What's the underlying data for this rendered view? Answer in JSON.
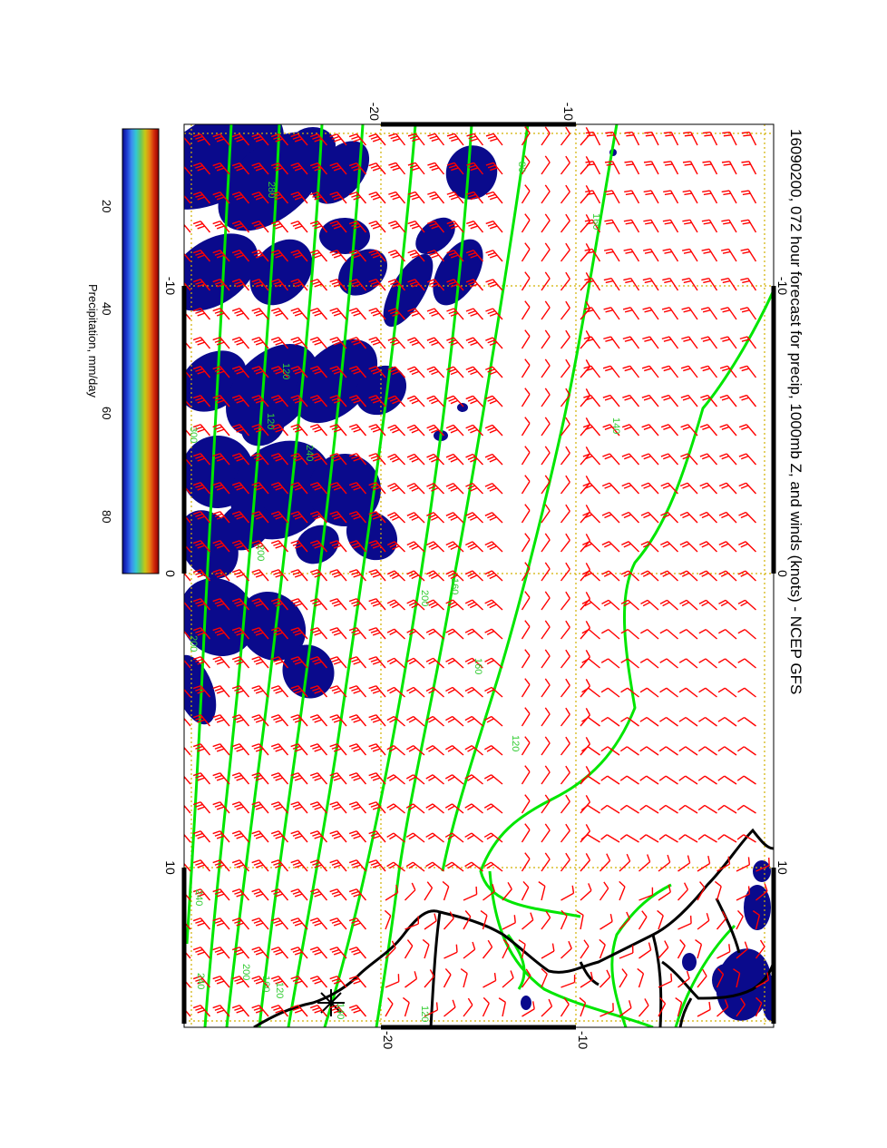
{
  "title": "16090200, 072 hour forecast for precip, 1000mb Z, and winds (knots) - NCEP GFS",
  "colorbar": {
    "label": "Precipitation, mm/day",
    "ticks": [
      "20",
      "40",
      "60",
      "80"
    ],
    "stops": [
      "#0a0a8c",
      "#1e3cd2",
      "#3c8cf0",
      "#32c8d2",
      "#64c864",
      "#c8c814",
      "#e68214",
      "#d2280a",
      "#8c0000"
    ]
  },
  "axes": {
    "top_ticks": [
      "-20",
      "-10"
    ],
    "bottom_ticks": [
      "-20",
      "-10"
    ],
    "left_ticks": [
      "-10",
      "0",
      "10"
    ],
    "right_ticks": [
      "-10",
      "0",
      "10"
    ]
  },
  "contour_labels": [
    "80",
    "160",
    "280",
    "120",
    "120",
    "300",
    "240",
    "200",
    "200",
    "160",
    "160",
    "200",
    "120",
    "140",
    "240",
    "200",
    "160",
    "120",
    "240",
    "140",
    "120"
  ],
  "colors": {
    "barb": "#ff0000",
    "contour": "#00e600",
    "contour_label": "#33cc33",
    "precip": "#0a0a8c",
    "grid": "#d2b000",
    "coast": "#000000"
  }
}
